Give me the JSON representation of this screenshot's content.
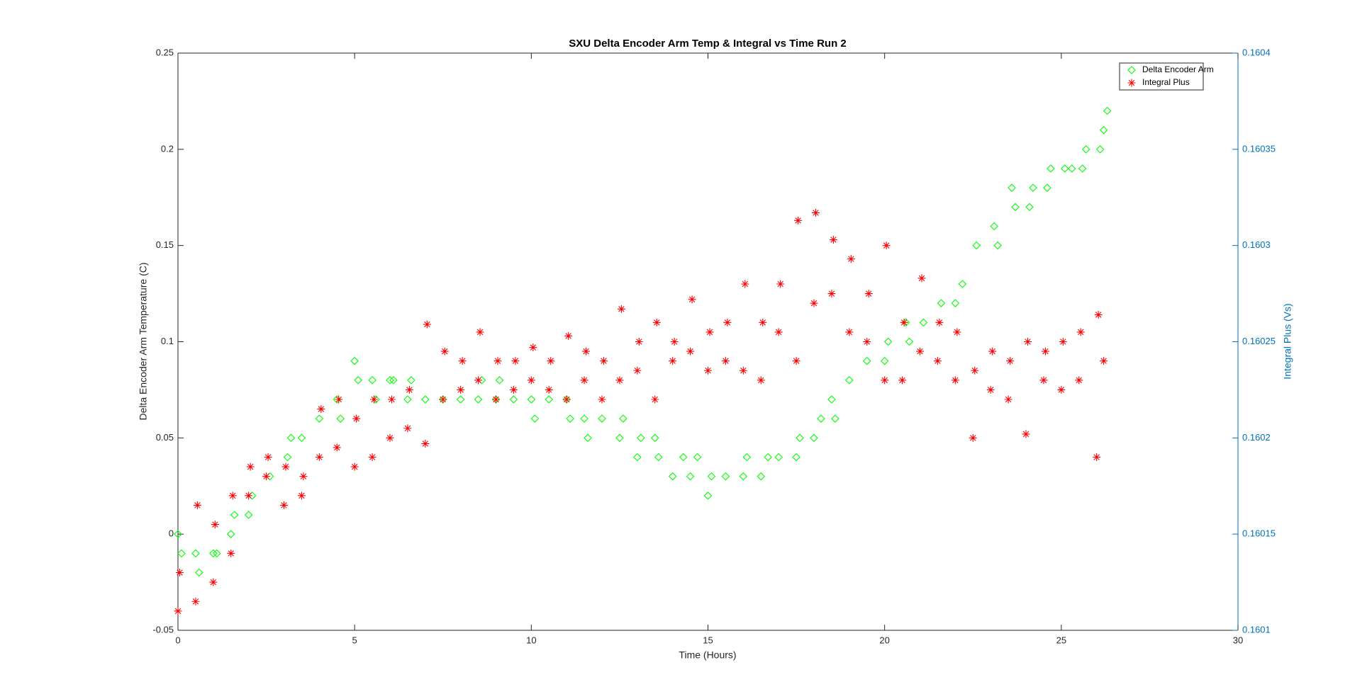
{
  "chart_data": {
    "type": "scatter",
    "title": "SXU Delta Encoder Arm Temp & Integral vs Time Run 2",
    "x_label": "Time (Hours)",
    "y_label": "Delta Encoder Arm Temperature (C)",
    "y2_label": "Integral Plus (Vs)",
    "xlim": [
      0,
      30
    ],
    "xticks": [
      0,
      5,
      10,
      15,
      20,
      25,
      30
    ],
    "ylim": [
      -0.05,
      0.25
    ],
    "yticks": [
      -0.05,
      0,
      0.05,
      0.1,
      0.15,
      0.2,
      0.25
    ],
    "y2lim": [
      0.1601,
      0.1604
    ],
    "y2ticks": [
      0.1601,
      0.16015,
      0.1602,
      0.16025,
      0.1603,
      0.16035,
      0.1604
    ],
    "y2_color": "#0072bd",
    "legend": "northeast",
    "series": [
      {
        "name": "Delta Encoder Arm",
        "color": "#00ff00",
        "marker": "diamond",
        "x": [
          0,
          0.1,
          0.5,
          0.6,
          1.0,
          1.1,
          1.5,
          1.6,
          2.0,
          2.1,
          2.6,
          3.1,
          3.2,
          3.5,
          4.0,
          4.5,
          4.6,
          5.0,
          5.1,
          5.5,
          5.6,
          6.0,
          6.1,
          6.5,
          6.6,
          7.0,
          7.5,
          8.0,
          8.5,
          8.6,
          9.0,
          9.1,
          9.5,
          10.0,
          10.1,
          10.5,
          11.0,
          11.1,
          11.5,
          11.6,
          12.0,
          12.5,
          12.6,
          13.0,
          13.1,
          13.5,
          13.6,
          14.0,
          14.3,
          14.5,
          14.7,
          15.0,
          15.1,
          15.5,
          16.0,
          16.1,
          16.5,
          16.7,
          17.0,
          17.5,
          17.6,
          18.0,
          18.2,
          18.5,
          18.6,
          19.0,
          19.5,
          20.0,
          20.1,
          20.6,
          20.7,
          21.1,
          21.6,
          22.0,
          22.2,
          22.6,
          23.1,
          23.2,
          23.6,
          23.7,
          24.1,
          24.2,
          24.6,
          24.7,
          25.1,
          25.3,
          25.6,
          25.7,
          26.1,
          26.2,
          26.3
        ],
        "values": [
          0,
          -0.01,
          -0.01,
          -0.02,
          -0.01,
          -0.01,
          0,
          0.01,
          0.01,
          0.02,
          0.03,
          0.04,
          0.05,
          0.05,
          0.06,
          0.07,
          0.06,
          0.09,
          0.08,
          0.08,
          0.07,
          0.08,
          0.08,
          0.07,
          0.08,
          0.07,
          0.07,
          0.07,
          0.07,
          0.08,
          0.07,
          0.08,
          0.07,
          0.07,
          0.06,
          0.07,
          0.07,
          0.06,
          0.06,
          0.05,
          0.06,
          0.05,
          0.06,
          0.04,
          0.05,
          0.05,
          0.04,
          0.03,
          0.04,
          0.03,
          0.04,
          0.02,
          0.03,
          0.03,
          0.03,
          0.04,
          0.03,
          0.04,
          0.04,
          0.04,
          0.05,
          0.05,
          0.06,
          0.07,
          0.06,
          0.08,
          0.09,
          0.09,
          0.1,
          0.11,
          0.1,
          0.11,
          0.12,
          0.12,
          0.13,
          0.15,
          0.16,
          0.15,
          0.18,
          0.17,
          0.17,
          0.18,
          0.18,
          0.19,
          0.19,
          0.19,
          0.19,
          0.2,
          0.2,
          0.21,
          0.22
        ]
      },
      {
        "name": "Integral Plus",
        "color": "#ff0000",
        "marker": "star",
        "axis": "y2",
        "x": [
          0,
          0.05,
          0.5,
          0.55,
          1.0,
          1.05,
          1.5,
          1.55,
          2.0,
          2.05,
          2.5,
          2.55,
          3.0,
          3.05,
          3.5,
          3.55,
          4.0,
          4.05,
          4.5,
          4.55,
          5.0,
          5.05,
          5.5,
          5.55,
          6.0,
          6.05,
          6.5,
          6.55,
          7.0,
          7.05,
          7.5,
          7.55,
          8.0,
          8.05,
          8.5,
          8.55,
          9.0,
          9.05,
          9.5,
          9.55,
          10.0,
          10.05,
          10.5,
          10.55,
          11.0,
          11.05,
          11.5,
          11.55,
          12.0,
          12.05,
          12.5,
          12.55,
          13.0,
          13.05,
          13.5,
          13.55,
          14.0,
          14.05,
          14.5,
          14.55,
          15.0,
          15.05,
          15.5,
          15.55,
          16.0,
          16.05,
          16.5,
          16.55,
          17.0,
          17.05,
          17.5,
          17.55,
          18.0,
          18.05,
          18.5,
          18.55,
          19.0,
          19.05,
          19.5,
          19.55,
          20.0,
          20.05,
          20.5,
          20.55,
          21.0,
          21.05,
          21.5,
          21.55,
          22.0,
          22.05,
          22.5,
          22.55,
          23.0,
          23.05,
          23.5,
          23.55,
          24.0,
          24.05,
          24.5,
          24.55,
          25.0,
          25.05,
          25.5,
          25.55,
          26.0,
          26.05,
          26.2
        ],
        "values": [
          0.16011,
          0.16013,
          0.160115,
          0.160165,
          0.160125,
          0.160155,
          0.16014,
          0.16017,
          0.16017,
          0.160185,
          0.16018,
          0.16019,
          0.160165,
          0.160185,
          0.16017,
          0.16018,
          0.16019,
          0.160215,
          0.160195,
          0.16022,
          0.160185,
          0.16021,
          0.16019,
          0.16022,
          0.1602,
          0.16022,
          0.160205,
          0.160225,
          0.160197,
          0.160259,
          0.16022,
          0.160245,
          0.160225,
          0.16024,
          0.16023,
          0.160255,
          0.16022,
          0.16024,
          0.160225,
          0.16024,
          0.16023,
          0.160247,
          0.160225,
          0.16024,
          0.16022,
          0.160253,
          0.16023,
          0.160245,
          0.16022,
          0.16024,
          0.16023,
          0.160267,
          0.160235,
          0.16025,
          0.16022,
          0.16026,
          0.16024,
          0.16025,
          0.160245,
          0.160272,
          0.160235,
          0.160255,
          0.16024,
          0.16026,
          0.160235,
          0.16028,
          0.16023,
          0.16026,
          0.160255,
          0.16028,
          0.16024,
          0.160313,
          0.16027,
          0.160317,
          0.160275,
          0.160303,
          0.160255,
          0.160293,
          0.16025,
          0.160275,
          0.16023,
          0.1603,
          0.16023,
          0.16026,
          0.160245,
          0.160283,
          0.16024,
          0.16026,
          0.16023,
          0.160255,
          0.1602,
          0.160235,
          0.160225,
          0.160245,
          0.16022,
          0.16024,
          0.160202,
          0.16025,
          0.16023,
          0.160245,
          0.160225,
          0.16025,
          0.16023,
          0.160255,
          0.16019,
          0.160264,
          0.16024
        ]
      }
    ]
  }
}
